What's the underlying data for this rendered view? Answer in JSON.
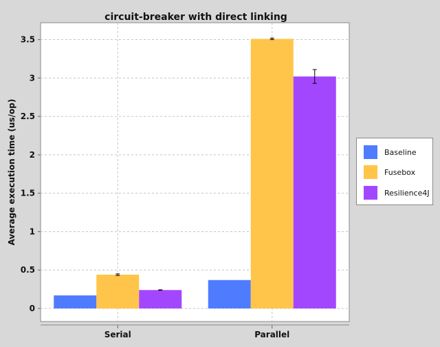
{
  "chart_data": {
    "type": "bar",
    "title": "circuit-breaker with direct linking",
    "xlabel": "",
    "ylabel": "Average execution time (us/op)",
    "categories": [
      "Serial",
      "Parallel"
    ],
    "ylim": [
      -0.17,
      3.72
    ],
    "yticks": [
      "0",
      "0.5",
      "1",
      "1.5",
      "2",
      "2.5",
      "3",
      "3.5"
    ],
    "grid": true,
    "legend_position": "right",
    "series": [
      {
        "name": "Baseline",
        "color": "#4f7cff",
        "values": [
          0.17,
          0.37
        ],
        "errors": [
          null,
          null
        ]
      },
      {
        "name": "Fusebox",
        "color": "#ffc54a",
        "values": [
          0.44,
          3.51
        ],
        "errors": [
          0.01,
          0.01
        ]
      },
      {
        "name": "Resilience4J",
        "color": "#a347ff",
        "values": [
          0.24,
          3.02
        ],
        "errors": [
          0.003,
          0.09
        ]
      }
    ]
  }
}
